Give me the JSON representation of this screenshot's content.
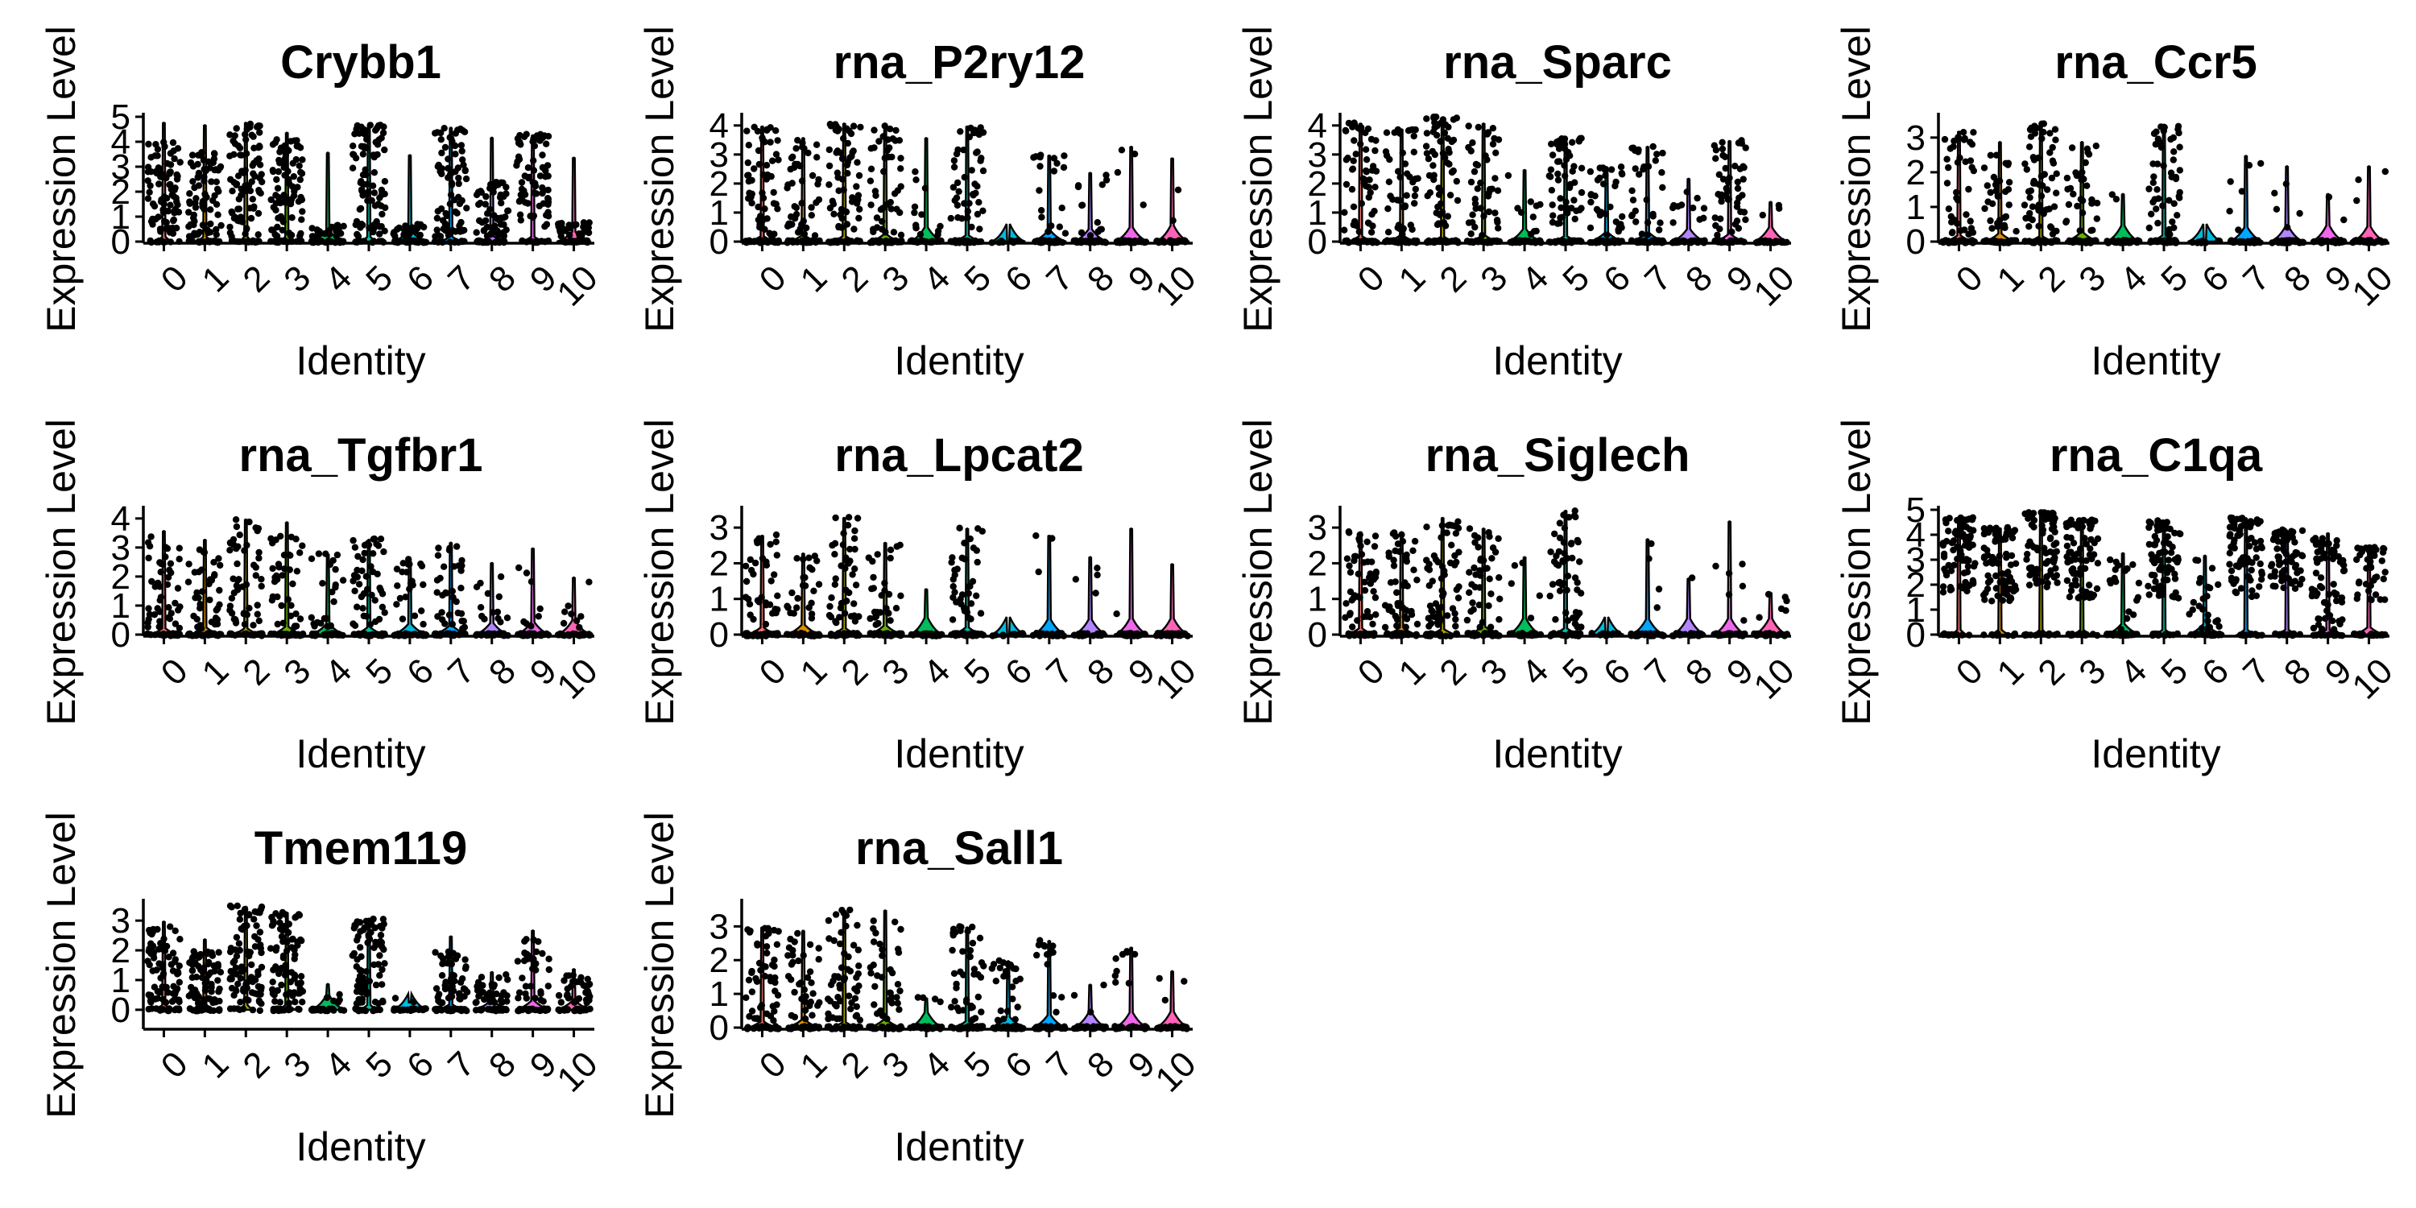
{
  "chart_data": {
    "type": "violin",
    "layout": "3x4 grid of violin plots with jittered points",
    "xlabel": "Identity",
    "ylabel": "Expression Level",
    "categories": [
      "0",
      "1",
      "2",
      "3",
      "4",
      "5",
      "6",
      "7",
      "8",
      "9",
      "10"
    ],
    "cluster_colors": [
      "#F8766D",
      "#DB8E00",
      "#AEA200",
      "#64B200",
      "#00BD5C",
      "#00C1A7",
      "#00BADE",
      "#00A6FF",
      "#B385FF",
      "#EF67EB",
      "#FF63B6"
    ],
    "point_color": "#000000",
    "panels": [
      {
        "title": "Crybb1",
        "ylim": [
          0,
          5
        ],
        "yticks": [
          0,
          1,
          2,
          3,
          4,
          5
        ],
        "max": [
          4.8,
          4.7,
          4.8,
          4.4,
          3.6,
          4.7,
          3.5,
          4.6,
          4.2,
          4.3,
          3.4
        ],
        "median": [
          2.0,
          1.8,
          2.4,
          2.1,
          0.3,
          2.5,
          0.3,
          2.5,
          1.2,
          2.6,
          0.4
        ],
        "zero_frac": [
          0.12,
          0.15,
          0.08,
          0.12,
          0.6,
          0.1,
          0.6,
          0.2,
          0.3,
          0.2,
          0.55
        ]
      },
      {
        "title": "rna_P2ry12",
        "ylim": [
          0,
          4.3
        ],
        "yticks": [
          0,
          1,
          2,
          3,
          4
        ],
        "max": [
          4.0,
          3.6,
          4.1,
          4.1,
          3.6,
          4.0,
          0,
          3.0,
          2.4,
          3.3,
          2.9
        ],
        "median": [
          2.2,
          1.8,
          2.4,
          2.0,
          1.4,
          2.4,
          0,
          1.6,
          1.2,
          2.2,
          1.2
        ],
        "zero_frac": [
          0.3,
          0.35,
          0.3,
          0.4,
          0.8,
          0.35,
          1.0,
          0.6,
          0.7,
          0.8,
          0.9
        ]
      },
      {
        "title": "rna_Sparc",
        "ylim": [
          0,
          4.3
        ],
        "yticks": [
          0,
          1,
          2,
          3,
          4
        ],
        "max": [
          4.1,
          3.9,
          4.3,
          4.1,
          2.5,
          3.6,
          2.6,
          3.3,
          2.2,
          3.5,
          1.4
        ],
        "median": [
          2.4,
          2.0,
          2.6,
          2.0,
          1.4,
          2.3,
          1.5,
          1.8,
          1.2,
          2.0,
          1.0
        ],
        "zero_frac": [
          0.3,
          0.35,
          0.25,
          0.35,
          0.7,
          0.3,
          0.5,
          0.5,
          0.7,
          0.4,
          0.8
        ]
      },
      {
        "title": "rna_Ccr5",
        "ylim": [
          0,
          3.6
        ],
        "yticks": [
          0,
          1,
          2,
          3
        ],
        "max": [
          3.2,
          2.9,
          3.4,
          2.9,
          1.4,
          3.4,
          0,
          2.5,
          2.2,
          1.4,
          2.2
        ],
        "median": [
          1.8,
          1.3,
          2.0,
          1.4,
          1.4,
          1.9,
          0,
          1.5,
          1.2,
          1.2,
          1.4
        ],
        "zero_frac": [
          0.35,
          0.45,
          0.3,
          0.5,
          0.9,
          0.35,
          1.0,
          0.8,
          0.85,
          0.9,
          0.85
        ]
      },
      {
        "title": "rna_Tgfbr1",
        "ylim": [
          0,
          4.3
        ],
        "yticks": [
          0,
          1,
          2,
          3,
          4
        ],
        "max": [
          3.6,
          3.3,
          4.0,
          3.9,
          2.8,
          3.3,
          2.6,
          3.2,
          2.5,
          3.0,
          2.0
        ],
        "median": [
          1.8,
          1.5,
          2.0,
          1.7,
          1.6,
          1.8,
          1.4,
          1.6,
          1.2,
          1.4,
          1.2
        ],
        "zero_frac": [
          0.35,
          0.4,
          0.35,
          0.45,
          0.6,
          0.4,
          0.6,
          0.5,
          0.65,
          0.7,
          0.8
        ]
      },
      {
        "title": "rna_Lpcat2",
        "ylim": [
          0,
          3.5
        ],
        "yticks": [
          0,
          1,
          2,
          3
        ],
        "max": [
          2.8,
          2.3,
          3.3,
          2.6,
          1.3,
          3.0,
          0,
          2.8,
          2.2,
          3.0,
          2.0
        ],
        "median": [
          1.5,
          1.2,
          1.8,
          1.3,
          1.0,
          1.6,
          0,
          1.8,
          1.0,
          1.5,
          1.2
        ],
        "zero_frac": [
          0.4,
          0.55,
          0.35,
          0.5,
          0.95,
          0.4,
          1.0,
          0.85,
          0.85,
          0.9,
          0.9
        ]
      },
      {
        "title": "rna_Siglech",
        "ylim": [
          0,
          3.5
        ],
        "yticks": [
          0,
          1,
          2,
          3
        ],
        "max": [
          2.9,
          2.9,
          3.3,
          3.0,
          2.2,
          3.5,
          0,
          2.7,
          1.6,
          3.2,
          1.2
        ],
        "median": [
          1.6,
          1.5,
          1.8,
          1.5,
          1.4,
          1.8,
          0,
          1.8,
          1.1,
          1.2,
          1.0
        ],
        "zero_frac": [
          0.35,
          0.4,
          0.3,
          0.45,
          0.9,
          0.35,
          1.0,
          0.85,
          0.9,
          0.9,
          0.9
        ]
      },
      {
        "title": "rna_C1qa",
        "ylim": [
          0,
          5
        ],
        "yticks": [
          0,
          1,
          2,
          3,
          4,
          5
        ],
        "max": [
          4.7,
          4.3,
          4.9,
          4.6,
          3.3,
          4.6,
          3.2,
          4.7,
          4.2,
          4.1,
          3.5
        ],
        "median": [
          3.4,
          3.0,
          3.6,
          3.2,
          1.6,
          3.2,
          1.5,
          3.3,
          3.2,
          2.0,
          2.6
        ],
        "zero_frac": [
          0.1,
          0.15,
          0.1,
          0.15,
          0.6,
          0.15,
          0.6,
          0.15,
          0.2,
          0.25,
          0.4
        ]
      },
      {
        "title": "Tmem119",
        "ylim": [
          -0.6,
          3.6
        ],
        "yticks": [
          0,
          1,
          2,
          3
        ],
        "max": [
          3.0,
          2.4,
          3.5,
          3.3,
          0.9,
          3.1,
          0.3,
          2.5,
          1.3,
          2.7,
          1.4
        ],
        "median": [
          1.4,
          1.0,
          2.0,
          1.8,
          0.2,
          1.8,
          0.1,
          1.0,
          0.6,
          1.2,
          0.6
        ],
        "zero_frac": [
          0.15,
          0.2,
          0.1,
          0.15,
          0.8,
          0.15,
          0.9,
          0.3,
          0.5,
          0.5,
          0.5
        ]
      },
      {
        "title": "rna_Sall1",
        "ylim": [
          0,
          3.7
        ],
        "yticks": [
          0,
          1,
          2,
          3
        ],
        "max": [
          3.0,
          2.9,
          3.5,
          3.5,
          0.9,
          3.0,
          2.0,
          2.6,
          1.3,
          2.4,
          1.7
        ],
        "median": [
          1.6,
          1.4,
          1.8,
          1.6,
          0.9,
          1.6,
          1.3,
          1.7,
          1.0,
          1.9,
          1.2
        ],
        "zero_frac": [
          0.35,
          0.45,
          0.3,
          0.45,
          0.85,
          0.35,
          0.6,
          0.7,
          0.85,
          0.85,
          0.9
        ]
      }
    ]
  }
}
